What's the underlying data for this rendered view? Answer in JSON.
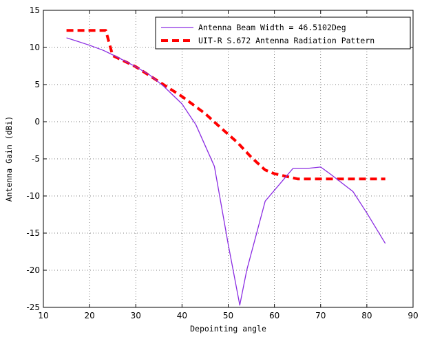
{
  "chart_data": {
    "type": "line",
    "xlabel": "Depointing angle",
    "ylabel": "Antenna Gain (dBi)",
    "xlim": [
      10,
      90
    ],
    "ylim": [
      -25,
      15
    ],
    "xticks": [
      10,
      20,
      30,
      40,
      50,
      60,
      70,
      80,
      90
    ],
    "yticks": [
      15,
      10,
      5,
      0,
      -5,
      -10,
      -15,
      -20,
      -25
    ],
    "grid": true,
    "legend_position": "top-right",
    "series": [
      {
        "name": "Antenna Beam Width = 46.5102Deg",
        "color": "#8a2be2",
        "style": "solid",
        "x": [
          15,
          17,
          20,
          23,
          26,
          30,
          33,
          36,
          40,
          43,
          47,
          50,
          52.5,
          54,
          58,
          64,
          67,
          70,
          72,
          77,
          80,
          84
        ],
        "y": [
          11.3,
          10.9,
          10.3,
          9.6,
          8.7,
          7.4,
          6.3,
          4.8,
          2.4,
          -0.4,
          -6.0,
          -16.5,
          -24.7,
          -20.0,
          -10.7,
          -6.3,
          -6.3,
          -6.1,
          -7.0,
          -9.4,
          -12.3,
          -16.4
        ]
      },
      {
        "name": "UIT-R S.672 Antenna Radiation Pattern",
        "color": "#ff0000",
        "style": "dashed",
        "x": [
          15,
          20,
          23.5,
          25,
          30,
          35,
          40,
          45,
          48,
          52,
          55,
          58,
          60,
          65,
          70,
          75,
          80,
          84
        ],
        "y": [
          12.3,
          12.3,
          12.3,
          8.9,
          7.4,
          5.4,
          3.4,
          1.1,
          -0.6,
          -2.8,
          -4.8,
          -6.5,
          -7.0,
          -7.7,
          -7.7,
          -7.7,
          -7.7,
          -7.7
        ]
      }
    ]
  }
}
